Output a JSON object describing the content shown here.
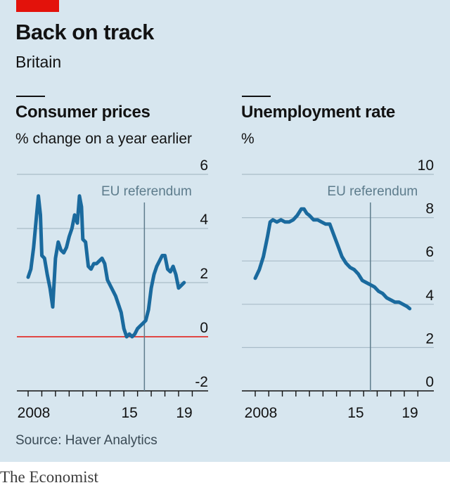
{
  "header": {
    "title": "Back on track",
    "subtitle": "Britain"
  },
  "source": "Source: Haver Analytics",
  "brand": "The Economist",
  "colors": {
    "background": "#d7e6ef",
    "series": "#1a6a9e",
    "zero_line": "#e3120b",
    "annotation": "#5d7c8c",
    "grid": "#a9bcc8"
  },
  "chart_data": [
    {
      "type": "line",
      "title": "Consumer prices",
      "subtitle": "% change on a year earlier",
      "ylim": [
        -2,
        6
      ],
      "yticks": [
        "6",
        "4",
        "2",
        "0",
        "-2"
      ],
      "xlim": [
        2007.5,
        2020.5
      ],
      "xtick_labels": [
        {
          "year": 2008,
          "label": "2008"
        },
        {
          "year": 2015,
          "label": "15"
        },
        {
          "year": 2019,
          "label": "19"
        }
      ],
      "annotation": {
        "label": "EU referendum",
        "x": 2016.5
      },
      "series": [
        {
          "x": [
            2008.0,
            2008.2,
            2008.4,
            2008.6,
            2008.75,
            2008.9,
            2009.0,
            2009.2,
            2009.4,
            2009.6,
            2009.8,
            2010.0,
            2010.2,
            2010.4,
            2010.6,
            2010.8,
            2011.0,
            2011.2,
            2011.4,
            2011.6,
            2011.75,
            2011.9,
            2012.0,
            2012.2,
            2012.4,
            2012.6,
            2012.8,
            2013.0,
            2013.2,
            2013.4,
            2013.6,
            2013.8,
            2014.0,
            2014.2,
            2014.4,
            2014.6,
            2014.8,
            2015.0,
            2015.2,
            2015.4,
            2015.6,
            2015.8,
            2016.0,
            2016.2,
            2016.4,
            2016.6,
            2016.8,
            2017.0,
            2017.2,
            2017.4,
            2017.6,
            2017.8,
            2018.0,
            2018.2,
            2018.4,
            2018.6,
            2018.8,
            2019.0,
            2019.2,
            2019.4
          ],
          "y": [
            2.2,
            2.5,
            3.3,
            4.4,
            5.2,
            4.5,
            3.0,
            2.9,
            2.3,
            1.8,
            1.1,
            2.9,
            3.5,
            3.2,
            3.1,
            3.3,
            3.7,
            4.0,
            4.5,
            4.2,
            5.2,
            4.8,
            3.6,
            3.5,
            2.6,
            2.5,
            2.7,
            2.7,
            2.8,
            2.9,
            2.7,
            2.1,
            1.9,
            1.7,
            1.5,
            1.2,
            0.9,
            0.3,
            0.0,
            0.1,
            0.0,
            0.1,
            0.3,
            0.4,
            0.5,
            0.6,
            1.0,
            1.8,
            2.3,
            2.6,
            2.8,
            3.0,
            3.0,
            2.5,
            2.4,
            2.6,
            2.3,
            1.8,
            1.9,
            2.0
          ]
        }
      ]
    },
    {
      "type": "line",
      "title": "Unemployment rate",
      "subtitle": "%",
      "ylim": [
        0,
        10
      ],
      "yticks": [
        "10",
        "8",
        "6",
        "4",
        "2",
        "0"
      ],
      "xlim": [
        2007.5,
        2020.5
      ],
      "xtick_labels": [
        {
          "year": 2008,
          "label": "2008"
        },
        {
          "year": 2015,
          "label": "15"
        },
        {
          "year": 2019,
          "label": "19"
        }
      ],
      "annotation": {
        "label": "EU referendum",
        "x": 2016.5
      },
      "series": [
        {
          "x": [
            2008.0,
            2008.3,
            2008.6,
            2008.9,
            2009.1,
            2009.3,
            2009.6,
            2009.9,
            2010.2,
            2010.5,
            2010.8,
            2011.1,
            2011.4,
            2011.6,
            2011.8,
            2012.0,
            2012.3,
            2012.6,
            2012.9,
            2013.2,
            2013.5,
            2013.8,
            2014.1,
            2014.4,
            2014.7,
            2015.0,
            2015.3,
            2015.6,
            2015.9,
            2016.2,
            2016.5,
            2016.8,
            2017.1,
            2017.4,
            2017.7,
            2018.0,
            2018.3,
            2018.6,
            2018.9,
            2019.2,
            2019.4
          ],
          "y": [
            5.2,
            5.6,
            6.2,
            7.1,
            7.8,
            7.9,
            7.8,
            7.9,
            7.8,
            7.8,
            7.9,
            8.1,
            8.4,
            8.4,
            8.2,
            8.1,
            7.9,
            7.9,
            7.8,
            7.7,
            7.7,
            7.2,
            6.7,
            6.2,
            5.9,
            5.7,
            5.6,
            5.4,
            5.1,
            5.0,
            4.9,
            4.8,
            4.6,
            4.5,
            4.3,
            4.2,
            4.1,
            4.1,
            4.0,
            3.9,
            3.8
          ]
        }
      ]
    }
  ]
}
